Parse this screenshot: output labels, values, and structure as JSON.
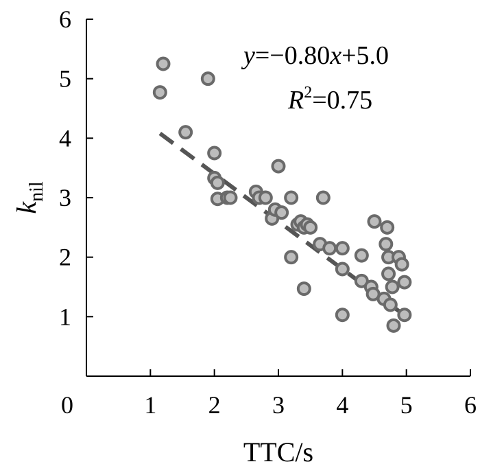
{
  "chart_data": {
    "type": "scatter",
    "xlabel": "TTC/s",
    "ylabel_main": "k",
    "ylabel_sub": "nil",
    "xlim": [
      0,
      6
    ],
    "ylim": [
      0,
      6
    ],
    "xticks": [
      "0",
      "1",
      "2",
      "3",
      "4",
      "5",
      "6"
    ],
    "yticks": [
      "1",
      "2",
      "3",
      "4",
      "5",
      "6"
    ],
    "grid": false,
    "annotations": {
      "equation_y": "y",
      "equation_rest": "=−0.80",
      "equation_x": "x",
      "equation_tail": "+5.0",
      "r2_R": "R",
      "r2_sup": "2",
      "r2_value": "=0.75"
    },
    "fit_line": {
      "slope": -0.8,
      "intercept": 5.0,
      "x_range": [
        1.15,
        5.0
      ],
      "style": "dashed",
      "color": "#555555"
    },
    "marker": {
      "fill": "#bdbdbd",
      "stroke": "#6a6a6a"
    },
    "series": [
      {
        "points": [
          [
            1.2,
            5.25
          ],
          [
            1.15,
            4.77
          ],
          [
            1.9,
            5.0
          ],
          [
            1.55,
            4.1
          ],
          [
            2.0,
            3.75
          ],
          [
            2.0,
            3.33
          ],
          [
            2.05,
            3.25
          ],
          [
            2.05,
            2.98
          ],
          [
            2.2,
            3.0
          ],
          [
            2.25,
            3.0
          ],
          [
            2.65,
            3.1
          ],
          [
            2.7,
            3.0
          ],
          [
            2.8,
            3.0
          ],
          [
            2.9,
            2.65
          ],
          [
            2.95,
            2.8
          ],
          [
            3.0,
            3.53
          ],
          [
            3.05,
            2.75
          ],
          [
            3.2,
            3.0
          ],
          [
            3.2,
            2.0
          ],
          [
            3.3,
            2.55
          ],
          [
            3.35,
            2.6
          ],
          [
            3.4,
            2.5
          ],
          [
            3.45,
            2.55
          ],
          [
            3.5,
            2.5
          ],
          [
            3.4,
            1.47
          ],
          [
            3.65,
            2.22
          ],
          [
            3.7,
            3.0
          ],
          [
            3.8,
            2.15
          ],
          [
            4.0,
            2.15
          ],
          [
            4.0,
            1.8
          ],
          [
            4.0,
            1.03
          ],
          [
            4.3,
            2.03
          ],
          [
            4.3,
            1.6
          ],
          [
            4.45,
            1.5
          ],
          [
            4.48,
            1.38
          ],
          [
            4.5,
            2.6
          ],
          [
            4.65,
            1.3
          ],
          [
            4.7,
            2.5
          ],
          [
            4.68,
            2.22
          ],
          [
            4.72,
            2.0
          ],
          [
            4.72,
            1.72
          ],
          [
            4.75,
            1.2
          ],
          [
            4.78,
            1.5
          ],
          [
            4.8,
            0.85
          ],
          [
            4.88,
            2.0
          ],
          [
            4.93,
            1.88
          ],
          [
            4.97,
            1.58
          ],
          [
            4.97,
            1.03
          ]
        ]
      }
    ]
  }
}
